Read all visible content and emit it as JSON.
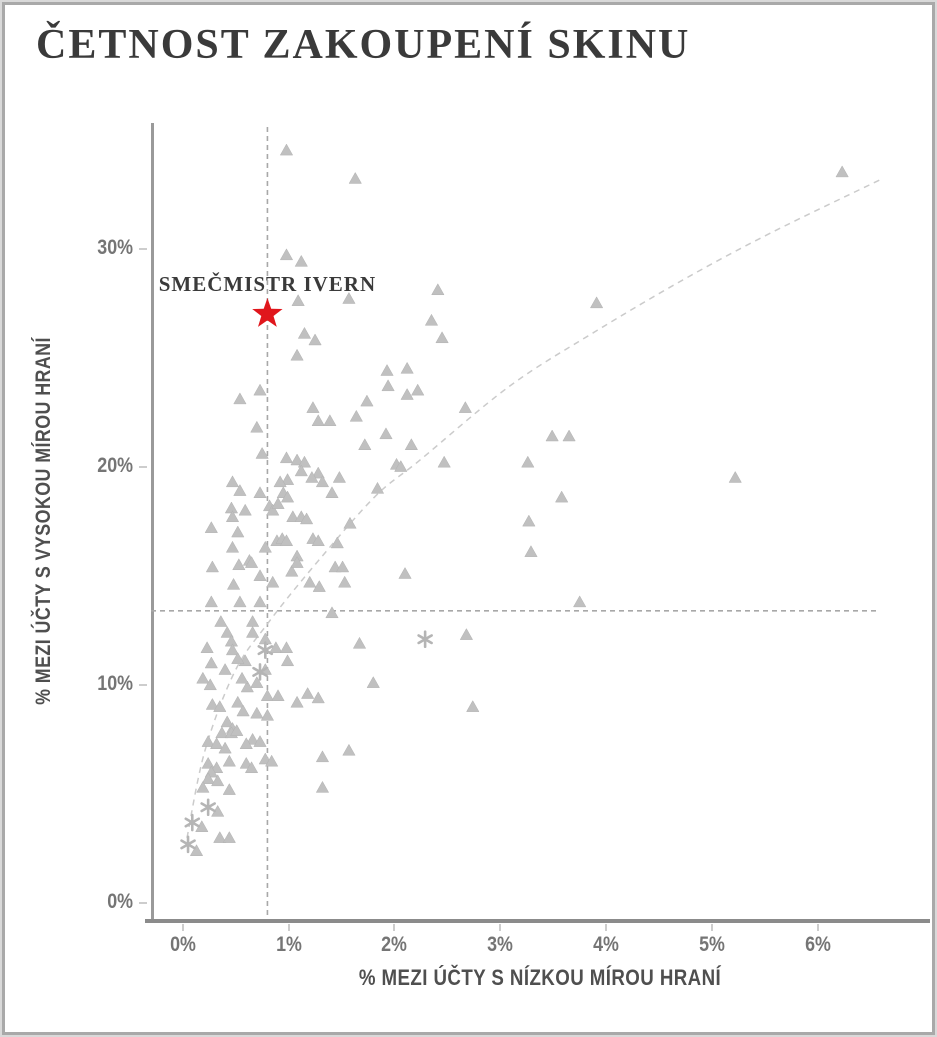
{
  "header": {
    "title": "ČETNOST ZAKOUPENÍ SKINU"
  },
  "colors": {
    "title": "#3a3a3a",
    "axis_title": "#4f4f4f",
    "tick_label": "#757575",
    "triangle_marker": "#c0c0c0",
    "triangle_edge": "#b2b2b2",
    "asterisk_marker": "#b5b5b5",
    "star": "#e0161c",
    "reference_line": "#a8a8a8",
    "trend_line": "#cbcbcb",
    "spine": "#9a9a9a",
    "page_border": "#a9a9a9"
  },
  "chart_data": {
    "type": "scatter",
    "title": "ČETNOST ZAKOUPENÍ SKINU",
    "xlabel": "% MEZI ÚČTY S NÍZKOU MÍROU HRANÍ",
    "ylabel": "% MEZI ÚČTY S VYSOKOU MÍROU HRANÍ",
    "x_tick_labels": [
      "0%",
      "1%",
      "2%",
      "3%",
      "4%",
      "5%",
      "6%"
    ],
    "x_tick_values": [
      0,
      1,
      2,
      3,
      4,
      5,
      6
    ],
    "y_tick_labels": [
      "0%",
      "10%",
      "20%",
      "30%"
    ],
    "y_tick_values": [
      0,
      10,
      20,
      30
    ],
    "xlim": [
      -0.3,
      7.06
    ],
    "ylim": [
      -0.72,
      35.75
    ],
    "grid": false,
    "legend": null,
    "annotation": {
      "label": "SMEČMISTR IVERN",
      "x": 0.8,
      "y": 27.0,
      "marker": "star"
    },
    "reference_lines": {
      "vertical_x": 0.8,
      "horizontal_y": 13.4,
      "horizontal_x_end": 6.57
    },
    "trend_line": [
      [
        0.04,
        3.0
      ],
      [
        0.21,
        7.0
      ],
      [
        0.49,
        10.6
      ],
      [
        0.8,
        12.8
      ],
      [
        1.23,
        15.4
      ],
      [
        1.81,
        18.6
      ],
      [
        2.24,
        20.3
      ],
      [
        3.09,
        23.7
      ],
      [
        3.9,
        26.2
      ],
      [
        4.74,
        28.6
      ],
      [
        5.55,
        30.7
      ],
      [
        6.61,
        33.2
      ]
    ],
    "series": [
      {
        "name": "skiny",
        "marker": "triangle",
        "points": [
          [
            0.98,
            34.5
          ],
          [
            1.63,
            33.2
          ],
          [
            6.23,
            33.5
          ],
          [
            0.98,
            29.7
          ],
          [
            1.12,
            29.4
          ],
          [
            2.41,
            28.1
          ],
          [
            1.09,
            27.6
          ],
          [
            1.57,
            27.7
          ],
          [
            3.91,
            27.5
          ],
          [
            2.35,
            26.7
          ],
          [
            1.15,
            26.1
          ],
          [
            2.45,
            25.9
          ],
          [
            1.25,
            25.8
          ],
          [
            1.08,
            25.1
          ],
          [
            1.93,
            24.4
          ],
          [
            2.12,
            24.5
          ],
          [
            1.94,
            23.7
          ],
          [
            0.73,
            23.5
          ],
          [
            2.12,
            23.3
          ],
          [
            2.22,
            23.5
          ],
          [
            0.54,
            23.1
          ],
          [
            1.74,
            23.0
          ],
          [
            1.23,
            22.7
          ],
          [
            1.28,
            22.1
          ],
          [
            1.39,
            22.1
          ],
          [
            1.64,
            22.3
          ],
          [
            0.7,
            21.8
          ],
          [
            1.92,
            21.5
          ],
          [
            3.49,
            21.4
          ],
          [
            3.65,
            21.4
          ],
          [
            1.72,
            21.0
          ],
          [
            2.16,
            21.0
          ],
          [
            0.75,
            20.6
          ],
          [
            0.98,
            20.4
          ],
          [
            1.08,
            20.3
          ],
          [
            3.26,
            20.2
          ],
          [
            2.67,
            22.7
          ],
          [
            2.47,
            20.2
          ],
          [
            1.15,
            20.2
          ],
          [
            2.02,
            20.1
          ],
          [
            2.06,
            20.0
          ],
          [
            1.12,
            19.8
          ],
          [
            1.28,
            19.7
          ],
          [
            5.22,
            19.5
          ],
          [
            1.22,
            19.5
          ],
          [
            1.48,
            19.5
          ],
          [
            1.32,
            19.3
          ],
          [
            0.47,
            19.3
          ],
          [
            0.99,
            19.4
          ],
          [
            0.92,
            19.3
          ],
          [
            1.84,
            19.0
          ],
          [
            0.54,
            18.9
          ],
          [
            0.95,
            18.8
          ],
          [
            0.99,
            18.6
          ],
          [
            0.73,
            18.8
          ],
          [
            1.41,
            18.8
          ],
          [
            3.58,
            18.6
          ],
          [
            0.46,
            18.1
          ],
          [
            0.59,
            18.0
          ],
          [
            0.82,
            18.2
          ],
          [
            0.85,
            18.0
          ],
          [
            0.9,
            18.3
          ],
          [
            1.04,
            17.7
          ],
          [
            1.12,
            17.7
          ],
          [
            1.17,
            17.6
          ],
          [
            0.47,
            17.7
          ],
          [
            3.27,
            17.5
          ],
          [
            1.58,
            17.4
          ],
          [
            0.27,
            17.2
          ],
          [
            0.52,
            17.0
          ],
          [
            1.46,
            16.5
          ],
          [
            0.78,
            16.3
          ],
          [
            0.89,
            16.6
          ],
          [
            0.94,
            16.7
          ],
          [
            0.98,
            16.6
          ],
          [
            1.23,
            16.7
          ],
          [
            1.28,
            16.6
          ],
          [
            3.29,
            16.1
          ],
          [
            1.08,
            15.9
          ],
          [
            0.47,
            16.3
          ],
          [
            0.63,
            15.7
          ],
          [
            0.28,
            15.4
          ],
          [
            0.53,
            15.5
          ],
          [
            0.65,
            15.6
          ],
          [
            0.73,
            15.0
          ],
          [
            0.85,
            14.7
          ],
          [
            1.03,
            15.2
          ],
          [
            1.08,
            15.6
          ],
          [
            1.2,
            14.7
          ],
          [
            1.29,
            14.5
          ],
          [
            1.44,
            15.4
          ],
          [
            1.51,
            15.4
          ],
          [
            1.53,
            14.7
          ],
          [
            2.1,
            15.1
          ],
          [
            0.48,
            14.6
          ],
          [
            0.27,
            13.8
          ],
          [
            0.54,
            13.8
          ],
          [
            0.73,
            13.8
          ],
          [
            1.41,
            13.3
          ],
          [
            3.75,
            13.8
          ],
          [
            0.36,
            12.9
          ],
          [
            0.42,
            12.4
          ],
          [
            0.46,
            12.0
          ],
          [
            0.47,
            11.6
          ],
          [
            0.66,
            12.9
          ],
          [
            0.66,
            12.4
          ],
          [
            0.78,
            12.1
          ],
          [
            0.88,
            11.7
          ],
          [
            0.98,
            11.7
          ],
          [
            0.99,
            11.1
          ],
          [
            2.68,
            12.3
          ],
          [
            0.78,
            10.7
          ],
          [
            0.59,
            11.1
          ],
          [
            0.52,
            11.2
          ],
          [
            0.23,
            11.7
          ],
          [
            0.27,
            11.0
          ],
          [
            0.4,
            10.7
          ],
          [
            0.7,
            10.1
          ],
          [
            0.61,
            9.9
          ],
          [
            0.56,
            10.3
          ],
          [
            0.19,
            10.3
          ],
          [
            0.26,
            10.0
          ],
          [
            1.67,
            11.9
          ],
          [
            1.8,
            10.1
          ],
          [
            0.28,
            9.1
          ],
          [
            0.35,
            9.0
          ],
          [
            0.52,
            9.2
          ],
          [
            0.57,
            8.8
          ],
          [
            0.7,
            8.7
          ],
          [
            0.8,
            8.6
          ],
          [
            0.8,
            9.5
          ],
          [
            0.9,
            9.5
          ],
          [
            1.08,
            9.2
          ],
          [
            1.18,
            9.6
          ],
          [
            1.28,
            9.4
          ],
          [
            2.74,
            9.0
          ],
          [
            0.42,
            8.3
          ],
          [
            0.47,
            8.0
          ],
          [
            0.37,
            7.8
          ],
          [
            0.24,
            7.4
          ],
          [
            0.32,
            7.3
          ],
          [
            0.46,
            7.8
          ],
          [
            0.51,
            7.9
          ],
          [
            0.66,
            7.5
          ],
          [
            0.73,
            7.4
          ],
          [
            0.4,
            7.1
          ],
          [
            0.6,
            7.3
          ],
          [
            1.57,
            7.0
          ],
          [
            0.24,
            6.4
          ],
          [
            0.32,
            6.2
          ],
          [
            0.44,
            6.5
          ],
          [
            0.6,
            6.4
          ],
          [
            0.65,
            6.2
          ],
          [
            0.78,
            6.6
          ],
          [
            0.84,
            6.5
          ],
          [
            1.32,
            6.7
          ],
          [
            1.32,
            5.3
          ],
          [
            0.27,
            6.0
          ],
          [
            0.24,
            5.7
          ],
          [
            0.33,
            5.6
          ],
          [
            0.19,
            5.3
          ],
          [
            0.44,
            5.2
          ],
          [
            0.33,
            4.2
          ],
          [
            0.18,
            3.5
          ],
          [
            0.35,
            3.0
          ],
          [
            0.44,
            3.0
          ],
          [
            0.13,
            2.4
          ]
        ]
      },
      {
        "name": "skiny-asterisk",
        "marker": "asterisk",
        "points": [
          [
            0.78,
            11.6
          ],
          [
            0.73,
            10.6
          ],
          [
            2.29,
            12.1
          ],
          [
            0.24,
            4.4
          ],
          [
            0.09,
            3.7
          ],
          [
            0.05,
            2.7
          ]
        ]
      }
    ]
  }
}
